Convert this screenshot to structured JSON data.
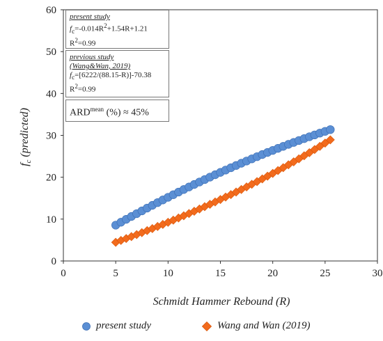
{
  "chart_data": {
    "type": "scatter",
    "x_axis": {
      "label": "Schmidt Hammer Rebound (R)",
      "ticks": [
        0,
        5,
        10,
        15,
        20,
        25,
        30
      ],
      "range": [
        0,
        30
      ]
    },
    "y_axis": {
      "label_main": "f",
      "label_sub": "c",
      "label_rest": " (predicted)",
      "ticks": [
        0,
        10,
        20,
        30,
        40,
        50,
        60
      ],
      "range": [
        0,
        60
      ]
    },
    "x_range_points": {
      "start": 5,
      "end": 25.5,
      "step": 0.5
    },
    "series": [
      {
        "name": "present study",
        "marker": "circle",
        "color": "#5B8FD4",
        "edge": "#3D6FB5",
        "formula": "fc = -0.014R^2 + 1.54R + 1.21"
      },
      {
        "name": "Wang and Wan (2019)",
        "marker": "diamond",
        "color": "#F26B1D",
        "edge": "#D9560A",
        "formula": "fc = 6222/(88.15-R) - 70.38"
      }
    ],
    "grid": false,
    "legend_position": "bottom"
  },
  "annotations": {
    "box1": {
      "heading": "present study",
      "eq_prefix": "f",
      "eq_sub": "c",
      "eq_text": "=-0.014R",
      "eq_sup": "2",
      "eq_rest": "+1.54R+1.21",
      "r2": "R",
      "r2_sup": "2",
      "r2_val": "=0.99"
    },
    "box2": {
      "heading1": "previous study",
      "heading2": "(Wang&Wan, 2019)",
      "eq_prefix": "f",
      "eq_sub": "c",
      "eq_text": "=[6222/(88.15-R)]-70.38",
      "r2": "R",
      "r2_sup": "2",
      "r2_val": "=0.99"
    },
    "box3": {
      "label": "ARD",
      "sup": "mean",
      "rest": " (%) ≈ 45%"
    }
  },
  "legend": {
    "item1": "present study",
    "item2": "Wang and Wan (2019)"
  }
}
